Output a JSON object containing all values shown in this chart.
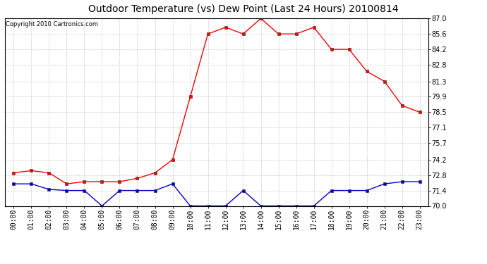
{
  "title": "Outdoor Temperature (vs) Dew Point (Last 24 Hours) 20100814",
  "copyright": "Copyright 2010 Cartronics.com",
  "hours": [
    "00:00",
    "01:00",
    "02:00",
    "03:00",
    "04:00",
    "05:00",
    "06:00",
    "07:00",
    "08:00",
    "09:00",
    "10:00",
    "11:00",
    "12:00",
    "13:00",
    "14:00",
    "15:00",
    "16:00",
    "17:00",
    "18:00",
    "19:00",
    "20:00",
    "21:00",
    "22:00",
    "23:00"
  ],
  "temp": [
    73.0,
    73.2,
    73.0,
    72.0,
    72.2,
    72.2,
    72.2,
    72.5,
    73.0,
    74.2,
    79.9,
    85.6,
    86.2,
    85.6,
    87.0,
    85.6,
    85.6,
    86.2,
    84.2,
    84.2,
    82.2,
    81.3,
    79.1,
    78.5
  ],
  "dewpoint": [
    72.0,
    72.0,
    71.5,
    71.4,
    71.4,
    70.0,
    71.4,
    71.4,
    71.4,
    72.0,
    70.0,
    70.0,
    70.0,
    71.4,
    70.0,
    70.0,
    70.0,
    70.0,
    71.4,
    71.4,
    71.4,
    72.0,
    72.2,
    72.2
  ],
  "temp_color": "#ff0000",
  "dewpoint_color": "#0000cc",
  "ylim_min": 70.0,
  "ylim_max": 87.0,
  "yticks": [
    70.0,
    71.4,
    72.8,
    74.2,
    75.7,
    77.1,
    78.5,
    79.9,
    81.3,
    82.8,
    84.2,
    85.6,
    87.0
  ],
  "bg_color": "#ffffff",
  "grid_color": "#cccccc",
  "title_fontsize": 10,
  "copyright_fontsize": 6,
  "tick_fontsize": 7,
  "marker_size": 3
}
